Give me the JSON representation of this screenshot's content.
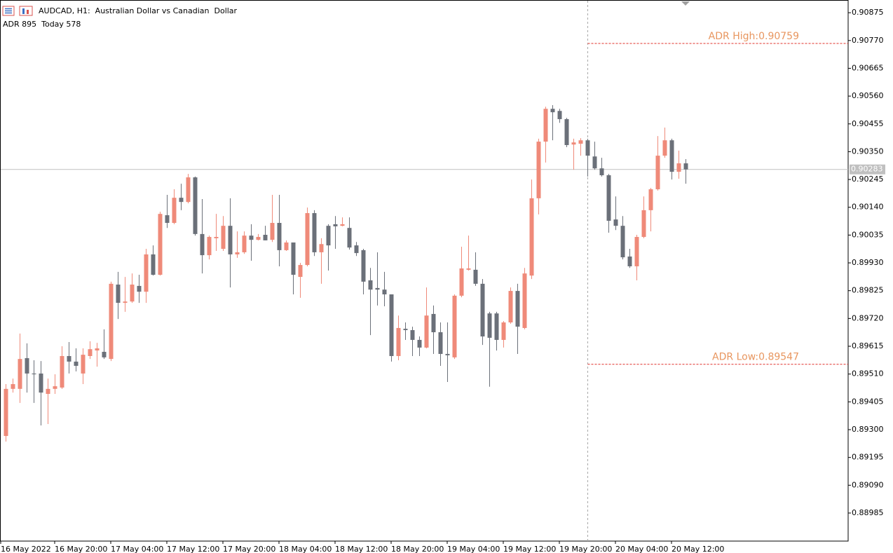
{
  "chart_data": {
    "type": "candlestick",
    "title": "AUDCAD, H1:  Australian Dollar vs Canadian  Dollar",
    "subtitle": "ADR 895  Today 578",
    "categories": [
      "16 May 2022",
      null,
      null,
      null,
      null,
      null,
      null,
      null,
      "16 May 20:00",
      null,
      null,
      null,
      null,
      null,
      null,
      null,
      "17 May 04:00",
      null,
      null,
      null,
      null,
      null,
      null,
      null,
      "17 May 12:00",
      null,
      null,
      null,
      null,
      null,
      null,
      null,
      "17 May 20:00",
      null,
      null,
      null,
      null,
      null,
      null,
      null,
      "18 May 04:00",
      null,
      null,
      null,
      null,
      null,
      null,
      null,
      "18 May 12:00",
      null,
      null,
      null,
      null,
      null,
      null,
      null,
      "18 May 20:00",
      null,
      null,
      null,
      null,
      null,
      null,
      null,
      "19 May 04:00",
      null,
      null,
      null,
      null,
      null,
      null,
      null,
      "19 May 12:00",
      null,
      null,
      null,
      null,
      null,
      null,
      null,
      "19 May 20:00",
      null,
      null,
      null,
      null,
      null,
      null,
      null,
      "20 May 04:00",
      null,
      null,
      null,
      null,
      null,
      null,
      null,
      "20 May 12:00",
      null
    ],
    "open": [
      0.89276,
      0.89454,
      0.89454,
      0.8957,
      0.89512,
      0.89512,
      0.89435,
      0.89454,
      0.89459,
      0.89578,
      0.89557,
      0.89512,
      0.89578,
      0.89599,
      0.89594,
      0.89567,
      0.89848,
      0.89779,
      0.89784,
      0.89843,
      0.89821,
      0.89962,
      0.89885,
      0.9011,
      0.90081,
      0.90176,
      0.9016,
      0.90253,
      0.90039,
      0.89959,
      0.90023,
      0.89983,
      0.9007,
      0.89962,
      0.8997,
      0.90033,
      0.90017,
      0.90036,
      0.90017,
      0.90081,
      0.89978,
      0.90007,
      0.89877,
      0.89922,
      0.90118,
      0.8997,
      0.9007,
      0.90076,
      0.9007,
      0.90062,
      0.89996,
      0.89978,
      0.89864,
      0.89835,
      0.89829,
      0.89811,
      0.89578,
      0.89681,
      0.89676,
      0.89639,
      0.8961,
      0.89737,
      0.89668,
      0.89586,
      0.89573,
      0.89806,
      0.89904,
      0.89904,
      0.89851,
      0.89739,
      0.89739,
      0.89639,
      0.89705,
      0.89824,
      0.89684,
      0.89882,
      0.90174,
      0.90388,
      0.90512,
      0.90504,
      0.90473,
      0.90377,
      0.9038,
      0.90393,
      0.90332,
      0.90287,
      0.90261,
      0.90094,
      0.9007,
      0.89954,
      0.89917,
      0.90028,
      0.90129,
      0.90208,
      0.90335,
      0.90393,
      0.90274,
      0.90306
    ],
    "high": [
      0.89472,
      0.89493,
      0.89663,
      0.89626,
      0.89562,
      0.89559,
      0.89493,
      0.89509,
      0.89615,
      0.89631,
      0.89607,
      0.89607,
      0.89634,
      0.89628,
      0.89679,
      0.89859,
      0.89896,
      0.89877,
      0.8989,
      0.89885,
      0.89983,
      0.89996,
      0.90123,
      0.90187,
      0.90208,
      0.90229,
      0.90266,
      0.90256,
      0.90171,
      0.90033,
      0.90115,
      0.90107,
      0.90174,
      0.90049,
      0.90049,
      0.90076,
      0.90039,
      0.9007,
      0.90187,
      0.90187,
      0.90015,
      0.90007,
      0.8993,
      0.90139,
      0.90129,
      0.90023,
      0.90076,
      0.90107,
      0.90102,
      0.90102,
      0.90009,
      0.89983,
      0.89911,
      0.8997,
      0.89896,
      0.89811,
      0.89731,
      0.89705,
      0.89689,
      0.89652,
      0.89837,
      0.89769,
      0.89705,
      0.89705,
      0.89811,
      0.89991,
      0.90033,
      0.8997,
      0.89869,
      0.89745,
      0.89745,
      0.8971,
      0.89837,
      0.89851,
      0.89911,
      0.90245,
      0.90399,
      0.9052,
      0.90526,
      0.90512,
      0.90478,
      0.90399,
      0.90401,
      0.90399,
      0.90388,
      0.90327,
      0.90266,
      0.90181,
      0.90107,
      0.89983,
      0.90036,
      0.90181,
      0.90213,
      0.90409,
      0.90441,
      0.90399,
      0.90354,
      0.90322
    ],
    "low": [
      0.89255,
      0.8944,
      0.89401,
      0.8944,
      0.89401,
      0.89316,
      0.89321,
      0.89435,
      0.89454,
      0.89512,
      0.8952,
      0.89472,
      0.89567,
      0.89538,
      0.89567,
      0.89559,
      0.89718,
      0.89745,
      0.89779,
      0.89779,
      0.89779,
      0.89882,
      0.89882,
      0.90062,
      0.90076,
      0.90129,
      0.90155,
      0.90033,
      0.8989,
      0.89943,
      0.89975,
      0.89975,
      0.89837,
      0.89949,
      0.89964,
      0.89938,
      0.90015,
      0.90015,
      0.90009,
      0.89917,
      0.89975,
      0.89811,
      0.89798,
      0.89917,
      0.89956,
      0.89851,
      0.89901,
      0.89983,
      0.90068,
      0.8998,
      0.89956,
      0.89811,
      0.89657,
      0.89769,
      0.89766,
      0.89557,
      0.89562,
      0.89639,
      0.89578,
      0.89578,
      0.89607,
      0.89586,
      0.89541,
      0.8948,
      0.89567,
      0.898,
      0.89901,
      0.89843,
      0.8962,
      0.89462,
      0.89599,
      0.8961,
      0.897,
      0.89586,
      0.89679,
      0.89869,
      0.90113,
      0.90309,
      0.90393,
      0.90459,
      0.90367,
      0.90282,
      0.90335,
      0.90256,
      0.90282,
      0.90256,
      0.90044,
      0.90054,
      0.89943,
      0.89911,
      0.89864,
      0.90023,
      0.90049,
      0.90203,
      0.90327,
      0.90245,
      0.90248,
      0.90229
    ],
    "close": [
      0.89454,
      0.89472,
      0.89567,
      0.89512,
      0.89509,
      0.8944,
      0.89454,
      0.89464,
      0.89578,
      0.89557,
      0.89541,
      0.89583,
      0.89604,
      0.89607,
      0.89573,
      0.89851,
      0.89779,
      0.89784,
      0.89848,
      0.89821,
      0.89962,
      0.89885,
      0.90115,
      0.90081,
      0.90176,
      0.9016,
      0.90253,
      0.90039,
      0.89959,
      0.90028,
      0.90028,
      0.9007,
      0.89962,
      0.8997,
      0.90033,
      0.90017,
      0.90028,
      0.90015,
      0.90081,
      0.89978,
      0.90007,
      0.89885,
      0.89922,
      0.90118,
      0.8997,
      0.90001,
      0.89996,
      0.90068,
      0.90076,
      0.89988,
      0.89967,
      0.89859,
      0.89829,
      0.89829,
      0.89811,
      0.89578,
      0.89684,
      0.89676,
      0.89639,
      0.8961,
      0.89731,
      0.89668,
      0.89586,
      0.89581,
      0.89806,
      0.89909,
      0.89909,
      0.89851,
      0.89652,
      0.89647,
      0.89639,
      0.89705,
      0.89824,
      0.89689,
      0.8989,
      0.90174,
      0.90388,
      0.90512,
      0.90499,
      0.90473,
      0.90375,
      0.90385,
      0.90393,
      0.90335,
      0.90287,
      0.90261,
      0.90089,
      0.9007,
      0.89951,
      0.89917,
      0.90028,
      0.90129,
      0.90208,
      0.90335,
      0.90393,
      0.90274,
      0.90306,
      0.90283
    ],
    "up_color": "#ef8a79",
    "down_color": "#6b7079",
    "ylim": [
      0.88879,
      0.90923
    ],
    "yticks": [
      0.90875,
      {
        "value": 0.9077,
        "label": "0.90770"
      },
      0.90665,
      {
        "value": 0.9056,
        "label": "0.90560"
      },
      0.90455,
      {
        "value": 0.9035,
        "label": "0.90350"
      },
      0.90245,
      {
        "value": 0.9014,
        "label": "0.90140"
      },
      0.90035,
      {
        "value": 0.8993,
        "label": "0.89930"
      },
      0.89825,
      {
        "value": 0.8972,
        "label": "0.89720"
      },
      0.89615,
      {
        "value": 0.8951,
        "label": "0.89510"
      },
      0.89405,
      {
        "value": 0.893,
        "label": "0.89300"
      },
      0.89195,
      {
        "value": 0.8909,
        "label": "0.89090"
      },
      0.88985
    ],
    "current_price": 0.90283,
    "separator_index": 84,
    "annotations": [
      {
        "label": "ADR High:0.90759",
        "value": 0.90759,
        "color": "#e0302a",
        "text_color": "#e8965f"
      },
      {
        "label": "ADR Low:0.89547",
        "value": 0.89547,
        "color": "#e0302a",
        "text_color": "#e8965f"
      }
    ]
  }
}
